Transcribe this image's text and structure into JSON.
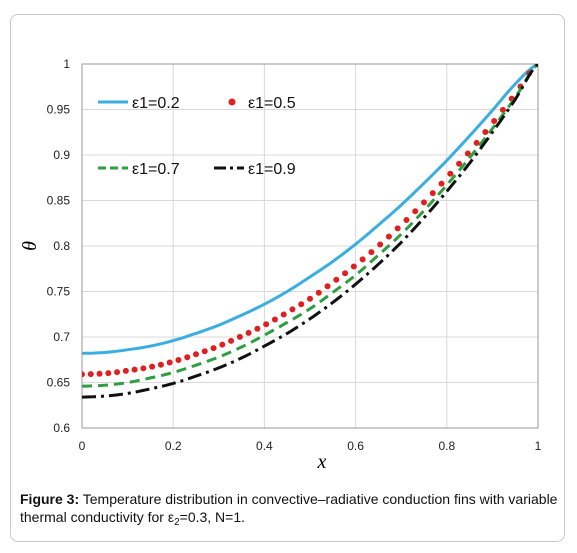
{
  "chart_data": {
    "type": "line",
    "x": [
      0,
      0.05,
      0.1,
      0.15,
      0.2,
      0.25,
      0.3,
      0.35,
      0.4,
      0.45,
      0.5,
      0.55,
      0.6,
      0.65,
      0.7,
      0.75,
      0.8,
      0.85,
      0.9,
      0.95,
      1.0
    ],
    "series": [
      {
        "name": "ε1=0.2",
        "style": "solid",
        "color": "#3aaee0",
        "values": [
          0.682,
          0.683,
          0.686,
          0.69,
          0.696,
          0.704,
          0.713,
          0.724,
          0.736,
          0.75,
          0.766,
          0.783,
          0.802,
          0.823,
          0.845,
          0.869,
          0.894,
          0.921,
          0.949,
          0.978,
          1.0
        ]
      },
      {
        "name": "ε1=0.5",
        "style": "dots",
        "color": "#e02020",
        "values": [
          0.659,
          0.66,
          0.663,
          0.667,
          0.673,
          0.681,
          0.69,
          0.701,
          0.713,
          0.727,
          0.742,
          0.76,
          0.779,
          0.8,
          0.823,
          0.848,
          0.875,
          0.904,
          0.935,
          0.967,
          1.0
        ]
      },
      {
        "name": "ε1=0.7",
        "style": "dashed",
        "color": "#2e9e40",
        "values": [
          0.646,
          0.647,
          0.65,
          0.655,
          0.661,
          0.669,
          0.678,
          0.689,
          0.702,
          0.716,
          0.731,
          0.749,
          0.768,
          0.79,
          0.813,
          0.839,
          0.867,
          0.897,
          0.929,
          0.963,
          1.0
        ]
      },
      {
        "name": "ε1=0.9",
        "style": "dashdot",
        "color": "#111111",
        "values": [
          0.634,
          0.635,
          0.638,
          0.643,
          0.649,
          0.657,
          0.666,
          0.677,
          0.69,
          0.704,
          0.72,
          0.738,
          0.758,
          0.78,
          0.804,
          0.831,
          0.86,
          0.891,
          0.925,
          0.961,
          1.0
        ]
      }
    ],
    "xlabel": "x",
    "ylabel": "θ",
    "xlim": [
      0,
      1
    ],
    "ylim": [
      0.6,
      1
    ],
    "xticks": [
      "0",
      "0.2",
      "0.4",
      "0.6",
      "0.8",
      "1"
    ],
    "yticks": [
      "0.6",
      "0.65",
      "0.7",
      "0.75",
      "0.8",
      "0.85",
      "0.9",
      "0.95",
      "1"
    ],
    "grid": true,
    "legend_position": "top-left"
  },
  "caption": {
    "label": "Figure 3:",
    "text": "Temperature distribution in convective–radiative conduction fins with variable thermal conductivity for ε",
    "sub": "2",
    "tail": "=0.3, N=1."
  }
}
